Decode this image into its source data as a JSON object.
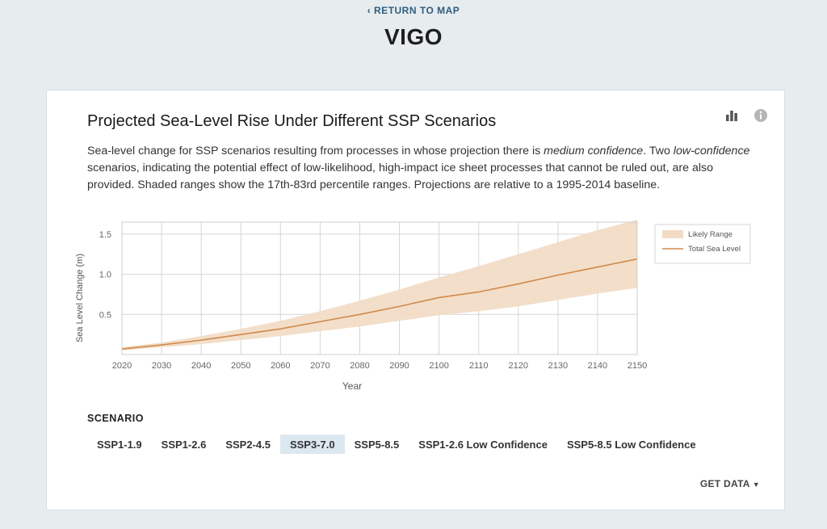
{
  "header": {
    "back_link": "‹ RETURN TO MAP",
    "title": "VIGO"
  },
  "card": {
    "title": "Projected Sea-Level Rise Under Different SSP Scenarios",
    "desc_1": "Sea-level change for SSP scenarios resulting from processes in whose projection there is ",
    "desc_em1": "medium confidence",
    "desc_2": ". Two ",
    "desc_em2": "low-confidence",
    "desc_3": " scenarios, indicating the potential effect of low-likelihood, high-impact ice sheet processes that cannot be ruled out, are also provided. Shaded ranges show the 17th-83rd percentile ranges. Projections are relative to a 1995-2014 baseline.",
    "icons": [
      "bar-chart-icon",
      "info-icon"
    ]
  },
  "scenario": {
    "label": "SCENARIO",
    "options": [
      "SSP1-1.9",
      "SSP1-2.6",
      "SSP2-4.5",
      "SSP3-7.0",
      "SSP5-8.5",
      "SSP1-2.6 Low Confidence",
      "SSP5-8.5 Low Confidence"
    ],
    "selected": "SSP3-7.0"
  },
  "get_data": "GET DATA",
  "chart_data": {
    "type": "line",
    "x": [
      2020,
      2030,
      2040,
      2050,
      2060,
      2070,
      2080,
      2090,
      2100,
      2110,
      2120,
      2130,
      2140,
      2150
    ],
    "series": [
      {
        "name": "Total Sea Level",
        "values": [
          0.07,
          0.12,
          0.18,
          0.25,
          0.32,
          0.41,
          0.5,
          0.6,
          0.71,
          0.78,
          0.88,
          0.99,
          1.09,
          1.19
        ],
        "color": "#d08a4c"
      }
    ],
    "range": {
      "name": "Likely Range",
      "low": [
        0.05,
        0.09,
        0.13,
        0.18,
        0.23,
        0.29,
        0.35,
        0.42,
        0.49,
        0.54,
        0.6,
        0.68,
        0.76,
        0.83
      ],
      "high": [
        0.09,
        0.15,
        0.23,
        0.32,
        0.42,
        0.54,
        0.67,
        0.81,
        0.96,
        1.1,
        1.25,
        1.4,
        1.55,
        1.68
      ],
      "color": "#f2dcc6"
    },
    "xlabel": "Year",
    "ylabel": "Sea Level Change (m)",
    "xlim": [
      2020,
      2150
    ],
    "ylim": [
      0,
      1.65
    ],
    "yticks": [
      0.5,
      1.0,
      1.5
    ],
    "ytick_labels": [
      "0.5",
      "1.0",
      "1.5"
    ],
    "grid": true,
    "legend_position": "top-right"
  }
}
